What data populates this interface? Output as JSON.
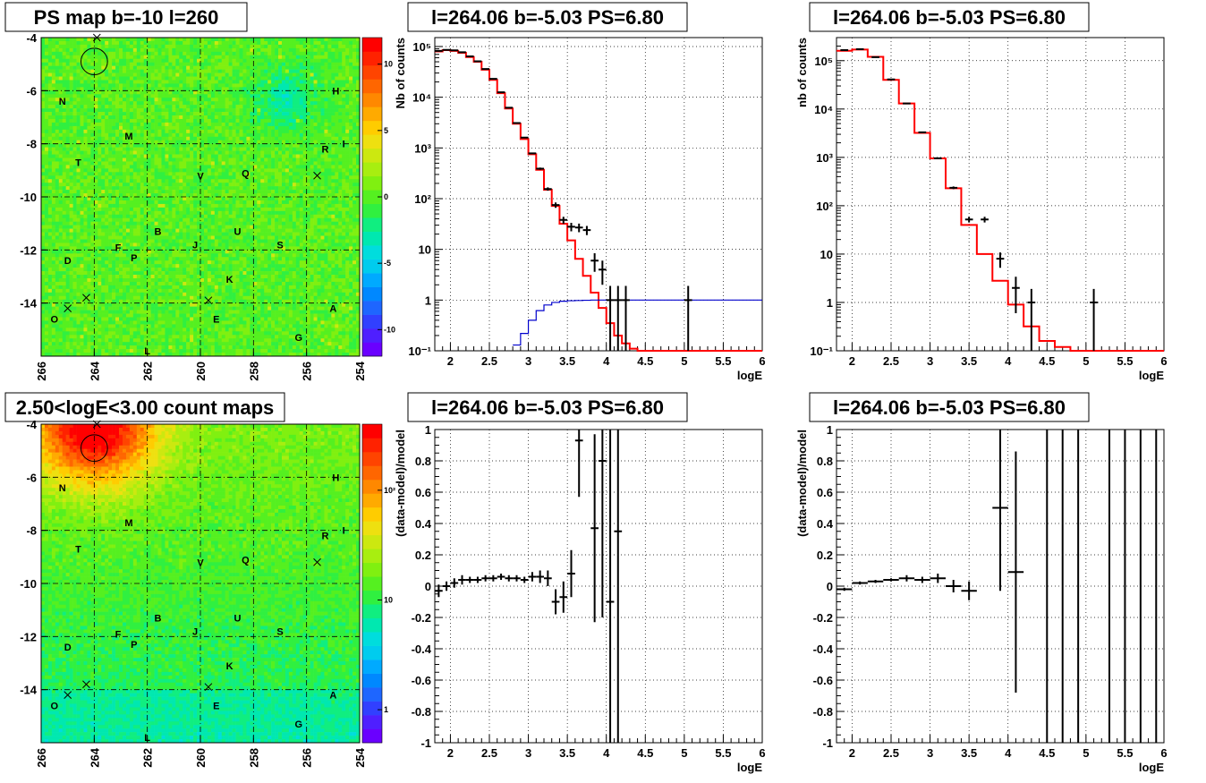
{
  "panels": {
    "ps_map": {
      "title": "PS map b=-10 l=260"
    },
    "count_map": {
      "title": "2.50<logE<3.00 count maps"
    },
    "spectrum_a": {
      "title": "l=264.06 b=-5.03 PS=6.80"
    },
    "spectrum_b": {
      "title": "l=264.06 b=-5.03 PS=6.80"
    },
    "residual_a": {
      "title": "l=264.06 b=-5.03 PS=6.80"
    },
    "residual_b": {
      "title": "l=264.06 b=-5.03 PS=6.80"
    }
  },
  "chart_data": [
    {
      "id": "ps_map",
      "type": "heatmap",
      "title": "PS map b=-10 l=260",
      "x_ticks": [
        "266",
        "264",
        "262",
        "260",
        "258",
        "256",
        "254"
      ],
      "x_tick_values": [
        266,
        264,
        262,
        260,
        258,
        256,
        254
      ],
      "xlim": [
        266,
        254
      ],
      "y_ticks": [
        "-4",
        "-6",
        "-8",
        "-10",
        "-12",
        "-14"
      ],
      "y_tick_values": [
        -4,
        -6,
        -8,
        -10,
        -12,
        -14
      ],
      "ylim": [
        -16,
        -4
      ],
      "colorbar_ticks": [
        "10",
        "5",
        "0",
        "-5",
        "-10"
      ],
      "colorbar_tick_values": [
        10,
        5,
        0,
        -5,
        -10
      ],
      "colorbar_range": [
        -12,
        12
      ],
      "grid": true,
      "source_labels": [
        {
          "label": "N",
          "l": 265.2,
          "b": -6.4
        },
        {
          "label": "M",
          "l": 262.7,
          "b": -7.7
        },
        {
          "label": "T",
          "l": 264.6,
          "b": -8.7
        },
        {
          "label": "V",
          "l": 260.0,
          "b": -9.2
        },
        {
          "label": "Q",
          "l": 258.3,
          "b": -9.1
        },
        {
          "label": "H",
          "l": 254.9,
          "b": -6.0
        },
        {
          "label": "R",
          "l": 255.3,
          "b": -8.2
        },
        {
          "label": "I",
          "l": 254.6,
          "b": -8.0
        },
        {
          "label": "B",
          "l": 261.6,
          "b": -11.3
        },
        {
          "label": "U",
          "l": 258.6,
          "b": -11.3
        },
        {
          "label": "J",
          "l": 260.2,
          "b": -11.8
        },
        {
          "label": "S",
          "l": 257.0,
          "b": -11.8
        },
        {
          "label": "F",
          "l": 263.1,
          "b": -11.9
        },
        {
          "label": "P",
          "l": 262.5,
          "b": -12.3
        },
        {
          "label": "D",
          "l": 265.0,
          "b": -12.4
        },
        {
          "label": "K",
          "l": 258.9,
          "b": -13.1
        },
        {
          "label": "A",
          "l": 255.0,
          "b": -14.2
        },
        {
          "label": "O",
          "l": 265.5,
          "b": -14.6
        },
        {
          "label": "E",
          "l": 259.4,
          "b": -14.6
        },
        {
          "label": "G",
          "l": 256.3,
          "b": -15.3
        },
        {
          "label": "L",
          "l": 262.0,
          "b": -15.8
        }
      ],
      "x_markers": [
        {
          "l": 263.9,
          "b": -4.0
        },
        {
          "l": 255.6,
          "b": -9.2
        },
        {
          "l": 264.3,
          "b": -13.8
        },
        {
          "l": 265.0,
          "b": -14.2
        },
        {
          "l": 259.7,
          "b": -13.9
        }
      ],
      "circle": {
        "l": 264.0,
        "b": -4.9,
        "r": 0.5
      }
    },
    {
      "id": "count_map",
      "type": "heatmap",
      "title": "2.50<logE<3.00 count maps",
      "x_ticks": [
        "266",
        "264",
        "262",
        "260",
        "258",
        "256",
        "254"
      ],
      "x_tick_values": [
        266,
        264,
        262,
        260,
        258,
        256,
        254
      ],
      "xlim": [
        266,
        254
      ],
      "y_ticks": [
        "-4",
        "-6",
        "-8",
        "-10",
        "-12",
        "-14"
      ],
      "y_tick_values": [
        -4,
        -6,
        -8,
        -10,
        -12,
        -14
      ],
      "ylim": [
        -16,
        -4
      ],
      "colorbar_ticks": [
        "10²",
        "10",
        "1"
      ],
      "colorbar_tick_values": [
        100,
        10,
        1
      ],
      "colorbar_log": true,
      "grid": true,
      "source_labels": [
        {
          "label": "N",
          "l": 265.2,
          "b": -6.4
        },
        {
          "label": "M",
          "l": 262.7,
          "b": -7.7
        },
        {
          "label": "T",
          "l": 264.6,
          "b": -8.7
        },
        {
          "label": "V",
          "l": 260.0,
          "b": -9.2
        },
        {
          "label": "Q",
          "l": 258.3,
          "b": -9.1
        },
        {
          "label": "H",
          "l": 254.9,
          "b": -6.0
        },
        {
          "label": "R",
          "l": 255.3,
          "b": -8.2
        },
        {
          "label": "I",
          "l": 254.6,
          "b": -8.0
        },
        {
          "label": "B",
          "l": 261.6,
          "b": -11.3
        },
        {
          "label": "U",
          "l": 258.6,
          "b": -11.3
        },
        {
          "label": "J",
          "l": 260.2,
          "b": -11.8
        },
        {
          "label": "S",
          "l": 257.0,
          "b": -11.8
        },
        {
          "label": "F",
          "l": 263.1,
          "b": -11.9
        },
        {
          "label": "P",
          "l": 262.5,
          "b": -12.3
        },
        {
          "label": "D",
          "l": 265.0,
          "b": -12.4
        },
        {
          "label": "K",
          "l": 258.9,
          "b": -13.1
        },
        {
          "label": "A",
          "l": 255.0,
          "b": -14.2
        },
        {
          "label": "O",
          "l": 265.5,
          "b": -14.6
        },
        {
          "label": "E",
          "l": 259.4,
          "b": -14.6
        },
        {
          "label": "G",
          "l": 256.3,
          "b": -15.3
        },
        {
          "label": "L",
          "l": 262.0,
          "b": -15.8
        }
      ],
      "x_markers": [
        {
          "l": 263.9,
          "b": -4.0
        },
        {
          "l": 255.6,
          "b": -9.2
        },
        {
          "l": 264.3,
          "b": -13.8
        },
        {
          "l": 265.0,
          "b": -14.2
        },
        {
          "l": 259.7,
          "b": -13.9
        }
      ],
      "circle": {
        "l": 264.0,
        "b": -4.9,
        "r": 0.5
      }
    },
    {
      "id": "spectrum_a",
      "type": "line",
      "title": "l=264.06 b=-5.03 PS=6.80",
      "xlabel": "logE",
      "ylabel": "Nb of counts",
      "xlim": [
        1.8,
        6.0
      ],
      "ylim": [
        0.1,
        150000
      ],
      "ylog": true,
      "x_ticks": [
        "2",
        "2.5",
        "3",
        "3.5",
        "4",
        "4.5",
        "5",
        "5.5",
        "6"
      ],
      "x_tick_values": [
        2,
        2.5,
        3,
        3.5,
        4,
        4.5,
        5,
        5.5,
        6
      ],
      "y_ticks": [
        "10⁻¹",
        "1",
        "10",
        "10²",
        "10³",
        "10⁴",
        "10⁵"
      ],
      "y_tick_values": [
        0.1,
        1,
        10,
        100,
        1000,
        10000,
        100000
      ],
      "grid": true,
      "series": [
        {
          "kind": "step",
          "color": "#ff0000",
          "edges": [
            1.8,
            1.9,
            2.0,
            2.1,
            2.2,
            2.3,
            2.4,
            2.5,
            2.6,
            2.7,
            2.8,
            2.9,
            3.0,
            3.1,
            3.2,
            3.3,
            3.4,
            3.5,
            3.6,
            3.7,
            3.8,
            3.9,
            4.0,
            4.1,
            4.2,
            4.3,
            4.4,
            4.5,
            6.0
          ],
          "values": [
            80000,
            85000,
            82000,
            75000,
            62000,
            50000,
            35000,
            22000,
            12000,
            6000,
            3000,
            1500,
            750,
            370,
            150,
            72,
            32,
            15,
            6.5,
            3.0,
            1.4,
            0.7,
            0.35,
            0.2,
            0.14,
            0.11,
            0.1,
            0.1
          ]
        },
        {
          "kind": "step",
          "color": "#0000cc",
          "edges": [
            2.8,
            2.9,
            3.0,
            3.1,
            3.2,
            3.3,
            3.4,
            3.5,
            3.6,
            3.7,
            3.8,
            6.0
          ],
          "values": [
            0.13,
            0.22,
            0.4,
            0.62,
            0.8,
            0.9,
            0.95,
            0.97,
            0.98,
            0.99,
            1.0
          ]
        },
        {
          "kind": "errorbars",
          "color": "#000000",
          "x": [
            1.85,
            1.95,
            2.05,
            2.15,
            2.25,
            2.35,
            2.45,
            2.55,
            2.65,
            2.75,
            2.85,
            2.95,
            3.05,
            3.15,
            3.25,
            3.35,
            3.45,
            3.55,
            3.65,
            3.75,
            3.85,
            3.95,
            4.05,
            4.15,
            4.25,
            5.05
          ],
          "y": [
            82000,
            86000,
            84000,
            77000,
            64000,
            51000,
            36000,
            23000,
            12500,
            6200,
            3100,
            1600,
            780,
            390,
            155,
            75,
            38,
            28,
            27,
            24,
            6,
            4,
            1,
            1,
            1,
            1
          ],
          "y_err": [
            290,
            290,
            290,
            280,
            250,
            225,
            190,
            150,
            110,
            80,
            55,
            40,
            28,
            20,
            12,
            9,
            6,
            5.3,
            5.2,
            4.9,
            2.4,
            2.0,
            0.9,
            0.9,
            0.9,
            0.9
          ]
        }
      ]
    },
    {
      "id": "spectrum_b",
      "type": "line",
      "title": "l=264.06 b=-5.03 PS=6.80",
      "xlabel": "logE",
      "ylabel": "nb of counts",
      "xlim": [
        1.8,
        6.0
      ],
      "ylim": [
        0.1,
        300000
      ],
      "ylog": true,
      "x_ticks": [
        "2",
        "2.5",
        "3",
        "3.5",
        "4",
        "4.5",
        "5",
        "5.5",
        "6"
      ],
      "x_tick_values": [
        2,
        2.5,
        3,
        3.5,
        4,
        4.5,
        5,
        5.5,
        6
      ],
      "y_ticks": [
        "10⁻¹",
        "1",
        "10",
        "10²",
        "10³",
        "10⁴",
        "10⁵"
      ],
      "y_tick_values": [
        0.1,
        1,
        10,
        100,
        1000,
        10000,
        100000
      ],
      "grid": true,
      "series": [
        {
          "kind": "step",
          "color": "#ff0000",
          "edges": [
            1.8,
            2.0,
            2.2,
            2.4,
            2.6,
            2.8,
            3.0,
            3.2,
            3.4,
            3.6,
            3.8,
            4.0,
            4.2,
            4.4,
            4.6,
            4.8,
            6.0
          ],
          "values": [
            160000,
            170000,
            120000,
            40000,
            13000,
            3200,
            950,
            230,
            40,
            10,
            2.8,
            0.9,
            0.32,
            0.16,
            0.12,
            0.1
          ]
        },
        {
          "kind": "errorbars",
          "color": "#000000",
          "x": [
            1.9,
            2.1,
            2.3,
            2.5,
            2.7,
            2.9,
            3.1,
            3.3,
            3.5,
            3.7,
            3.9,
            4.1,
            4.3,
            5.1
          ],
          "y": [
            165000,
            172000,
            118000,
            41000,
            13000,
            3300,
            960,
            235,
            52,
            52,
            8,
            2,
            1,
            1
          ],
          "y_err": [
            400,
            410,
            340,
            200,
            115,
            57,
            31,
            15,
            7,
            7,
            2.8,
            1.4,
            0.9,
            0.9
          ]
        }
      ]
    },
    {
      "id": "residual_a",
      "type": "scatter",
      "title": "l=264.06 b=-5.03 PS=6.80",
      "xlabel": "logE",
      "ylabel": "(data-model)/model",
      "xlim": [
        1.8,
        6.0
      ],
      "ylim": [
        -1,
        1
      ],
      "x_ticks": [
        "2",
        "2.5",
        "3",
        "3.5",
        "4",
        "4.5",
        "5",
        "5.5",
        "6"
      ],
      "x_tick_values": [
        2,
        2.5,
        3,
        3.5,
        4,
        4.5,
        5,
        5.5,
        6
      ],
      "y_ticks": [
        "-1",
        "-0.8",
        "-0.6",
        "-0.4",
        "-0.2",
        "0",
        "0.2",
        "0.4",
        "0.6",
        "0.8",
        "1"
      ],
      "y_tick_values": [
        -1,
        -0.8,
        -0.6,
        -0.4,
        -0.2,
        0,
        0.2,
        0.4,
        0.6,
        0.8,
        1
      ],
      "grid": true,
      "series": [
        {
          "kind": "errorbars",
          "color": "#000000",
          "x": [
            1.85,
            1.95,
            2.05,
            2.15,
            2.25,
            2.35,
            2.45,
            2.55,
            2.65,
            2.75,
            2.85,
            2.95,
            3.05,
            3.15,
            3.25,
            3.35,
            3.45,
            3.55,
            3.65,
            3.85,
            3.95,
            4.05,
            4.15
          ],
          "y": [
            -0.03,
            0.0,
            0.02,
            0.04,
            0.04,
            0.04,
            0.05,
            0.05,
            0.06,
            0.05,
            0.05,
            0.04,
            0.06,
            0.06,
            0.05,
            -0.1,
            -0.07,
            0.08,
            0.93,
            0.37,
            0.8,
            -0.1,
            0.35
          ],
          "y_err": [
            0.04,
            0.03,
            0.03,
            0.03,
            0.02,
            0.02,
            0.02,
            0.02,
            0.02,
            0.02,
            0.02,
            0.02,
            0.03,
            0.04,
            0.05,
            0.08,
            0.1,
            0.15,
            0.36,
            0.6,
            1.0,
            1.2,
            1.6
          ],
          "x_err": 0.05
        }
      ]
    },
    {
      "id": "residual_b",
      "type": "scatter",
      "title": "l=264.06 b=-5.03 PS=6.80",
      "xlabel": "logE",
      "ylabel": "(data-model)/model",
      "xlim": [
        1.8,
        6.0
      ],
      "ylim": [
        -1,
        1
      ],
      "x_ticks": [
        "2",
        "2.5",
        "3",
        "3.5",
        "4",
        "4.5",
        "5",
        "5.5",
        "6"
      ],
      "x_tick_values": [
        2,
        2.5,
        3,
        3.5,
        4,
        4.5,
        5,
        5.5,
        6
      ],
      "y_ticks": [
        "-1",
        "-0.8",
        "-0.6",
        "-0.4",
        "-0.2",
        "0",
        "0.2",
        "0.4",
        "0.6",
        "0.8",
        "1"
      ],
      "y_tick_values": [
        -1,
        -0.8,
        -0.6,
        -0.4,
        -0.2,
        0,
        0.2,
        0.4,
        0.6,
        0.8,
        1
      ],
      "grid": true,
      "series": [
        {
          "kind": "errorbars",
          "color": "#000000",
          "x": [
            1.9,
            2.1,
            2.3,
            2.5,
            2.7,
            2.9,
            3.1,
            3.3,
            3.5,
            3.9,
            4.1
          ],
          "y": [
            -0.02,
            0.02,
            0.03,
            0.04,
            0.05,
            0.04,
            0.05,
            0.0,
            -0.03,
            0.5,
            0.09
          ],
          "y_err": [
            0.01,
            0.01,
            0.01,
            0.01,
            0.02,
            0.02,
            0.03,
            0.04,
            0.06,
            0.53,
            0.77
          ],
          "x_err": 0.1
        },
        {
          "kind": "vlines",
          "color": "#000000",
          "x": [
            4.5,
            4.7,
            4.9,
            5.3,
            5.5,
            5.7,
            5.9
          ],
          "ymin": -1,
          "ymax": 1
        }
      ]
    }
  ]
}
